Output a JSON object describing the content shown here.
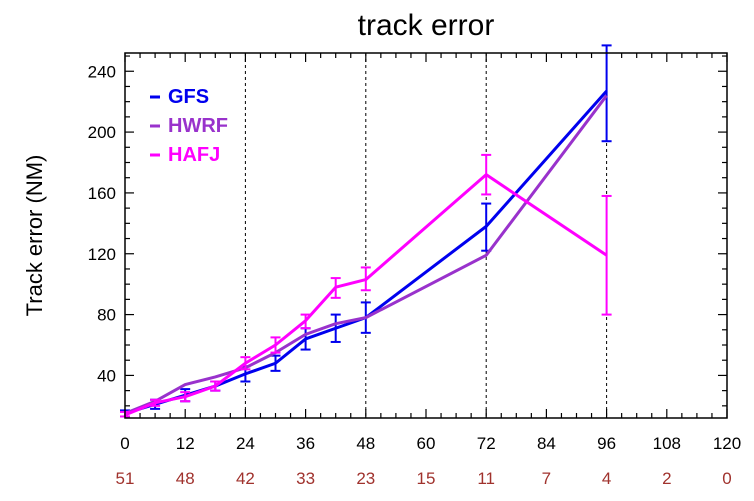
{
  "chart_data": {
    "type": "line",
    "title": "track error",
    "xlabel": "",
    "ylabel": "Track error (NM)",
    "xlim": [
      0,
      120
    ],
    "ylim": [
      12,
      252
    ],
    "x_ticks": [
      0,
      12,
      24,
      36,
      48,
      60,
      72,
      84,
      96,
      108,
      120
    ],
    "y_ticks": [
      40,
      80,
      120,
      160,
      200,
      240
    ],
    "vlines": [
      24,
      48,
      72,
      96
    ],
    "case_counts": {
      "x": [
        0,
        12,
        24,
        36,
        48,
        60,
        72,
        84,
        96,
        108,
        120
      ],
      "values": [
        "51",
        "48",
        "42",
        "33",
        "23",
        "15",
        "11",
        "7",
        "4",
        "2",
        "0"
      ],
      "color": "#a0322d"
    },
    "legend_position": "top-left",
    "series": [
      {
        "name": "GFS",
        "color": "#0000ee",
        "x": [
          0,
          6,
          12,
          18,
          24,
          30,
          36,
          42,
          48,
          72,
          96
        ],
        "y": [
          15,
          21,
          27,
          33,
          41,
          48,
          64,
          71,
          78,
          138,
          227
        ],
        "err_low": [
          13,
          18,
          23,
          30,
          36,
          43,
          57,
          62,
          68,
          122,
          194
        ],
        "err_high": [
          17,
          24,
          31,
          36,
          46,
          53,
          71,
          80,
          88,
          153,
          257
        ]
      },
      {
        "name": "HWRF",
        "color": "#9932cc",
        "x": [
          0,
          6,
          12,
          18,
          24,
          30,
          36,
          42,
          48,
          72,
          96
        ],
        "y": [
          15,
          23,
          34,
          39,
          45,
          55,
          67,
          74,
          78,
          119,
          224
        ]
      },
      {
        "name": "HAFJ",
        "color": "#ff00ff",
        "x": [
          0,
          6,
          12,
          18,
          24,
          30,
          36,
          42,
          48,
          72,
          96
        ],
        "y": [
          14,
          22,
          26,
          33,
          48,
          60,
          76,
          98,
          103,
          172,
          119
        ],
        "err_low": [
          13,
          20,
          23,
          30,
          44,
          55,
          71,
          91,
          96,
          159,
          80
        ],
        "err_high": [
          16,
          24,
          29,
          36,
          52,
          65,
          80,
          104,
          111,
          185,
          158
        ]
      }
    ]
  }
}
